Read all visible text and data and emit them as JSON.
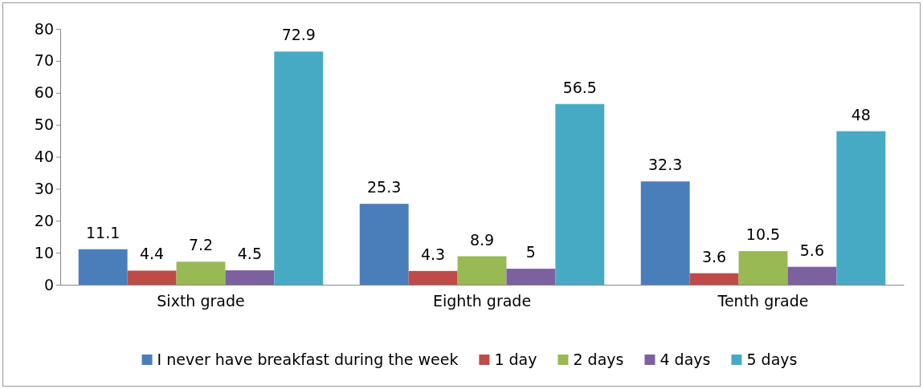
{
  "chart_data": {
    "type": "bar",
    "categories": [
      "Sixth grade",
      "Eighth grade",
      "Tenth grade"
    ],
    "series": [
      {
        "name": "I never have breakfast during the week",
        "color": "#4a7ebb",
        "values": [
          11.1,
          25.3,
          32.3
        ]
      },
      {
        "name": "1 day",
        "color": "#be4b48",
        "values": [
          4.4,
          4.3,
          3.6
        ]
      },
      {
        "name": "2 days",
        "color": "#98b954",
        "values": [
          7.2,
          8.9,
          10.5
        ]
      },
      {
        "name": "4 days",
        "color": "#7d60a0",
        "values": [
          4.5,
          5,
          5.6
        ]
      },
      {
        "name": "5 days",
        "color": "#46aac5",
        "values": [
          72.9,
          56.5,
          48
        ]
      }
    ],
    "ylim": [
      0,
      80
    ],
    "yticks": [
      0,
      10,
      20,
      30,
      40,
      50,
      60,
      70,
      80
    ],
    "grid": false,
    "legend": "bottom",
    "data_labels": true
  }
}
